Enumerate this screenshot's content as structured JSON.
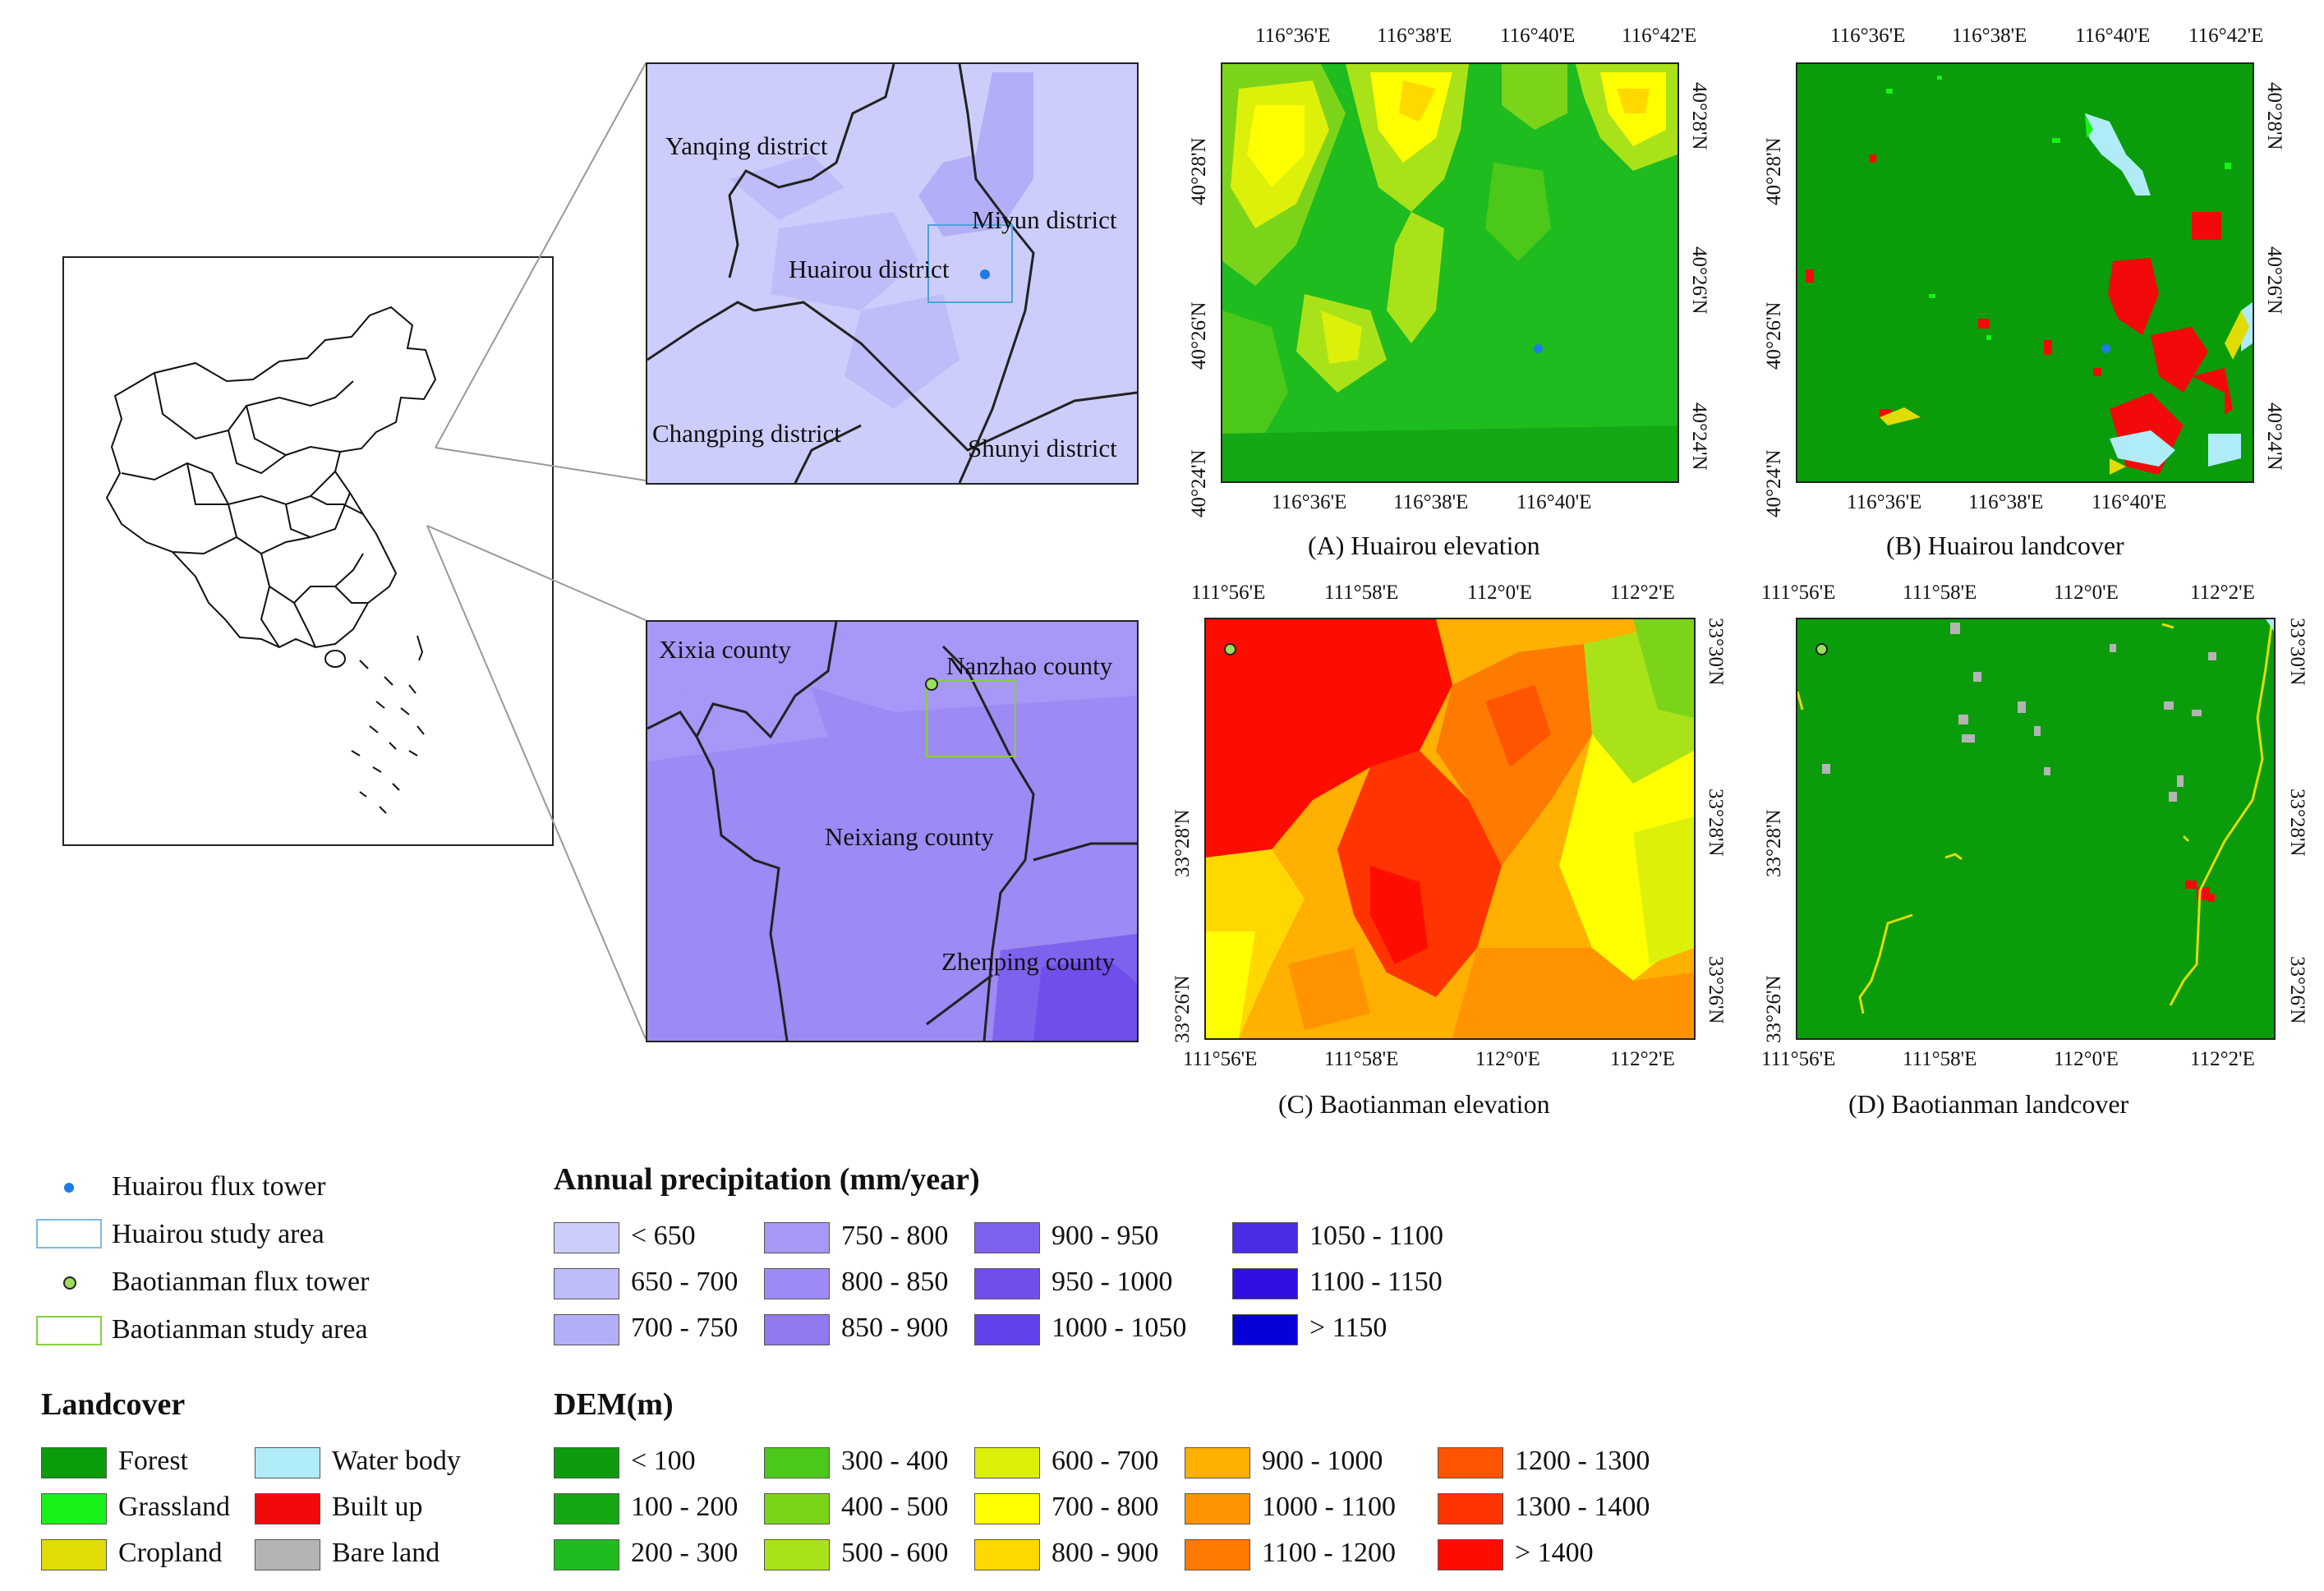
{
  "overview": {
    "name": "China overview map"
  },
  "inset_top": {
    "labels": [
      "Yanqing district",
      "Huairou district",
      "Miyun district",
      "Changping district",
      "Shunyi district"
    ]
  },
  "inset_bottom": {
    "labels": [
      "Xixia county",
      "Nanzhao county",
      "Neixiang county",
      "Zhenping county"
    ]
  },
  "panel_a": {
    "caption": "(A) Huairou elevation",
    "top_ticks": [
      "116°36'E",
      "116°38'E",
      "116°40'E",
      "116°42'E"
    ],
    "bottom_ticks": [
      "116°36'E",
      "116°38'E",
      "116°40'E"
    ],
    "left_ticks": [
      "40°28'N",
      "40°26'N",
      "40°24'N"
    ],
    "right_ticks": [
      "40°28'N",
      "40°26'N",
      "40°24'N"
    ]
  },
  "panel_b": {
    "caption": "(B) Huairou landcover",
    "top_ticks": [
      "116°36'E",
      "116°38'E",
      "116°40'E",
      "116°42'E"
    ],
    "bottom_ticks": [
      "116°36'E",
      "116°38'E",
      "116°40'E"
    ],
    "left_ticks": [
      "40°28'N",
      "40°26'N",
      "40°24'N"
    ],
    "right_ticks": [
      "40°28'N",
      "40°26'N",
      "40°24'N"
    ]
  },
  "panel_c": {
    "caption": "(C) Baotianman elevation",
    "top_ticks": [
      "111°56'E",
      "111°58'E",
      "112°0'E",
      "112°2'E"
    ],
    "bottom_ticks": [
      "111°56'E",
      "111°58'E",
      "112°0'E",
      "112°2'E"
    ],
    "left_ticks": [
      "33°28'N",
      "33°26'N"
    ],
    "right_ticks": [
      "33°30'N",
      "33°28'N",
      "33°26'N"
    ]
  },
  "panel_d": {
    "caption": "(D) Baotianman landcover",
    "top_ticks": [
      "111°56'E",
      "111°58'E",
      "112°0'E",
      "112°2'E"
    ],
    "bottom_ticks": [
      "111°56'E",
      "111°58'E",
      "112°0'E",
      "112°2'E"
    ],
    "left_ticks": [
      "33°28'N",
      "33°26'N"
    ],
    "right_ticks": [
      "33°30'N",
      "33°28'N",
      "33°26'N"
    ]
  },
  "legend_points": {
    "items": [
      "Huairou flux tower",
      "Huairou study area",
      "Baotianman flux tower",
      "Baotianman study area"
    ]
  },
  "precip": {
    "title": "Annual precipitation (mm/year)",
    "classes": [
      {
        "label": "< 650",
        "color": "#cdcdfb"
      },
      {
        "label": "650 - 700",
        "color": "#bfbcfa"
      },
      {
        "label": "700 - 750",
        "color": "#b3aef8"
      },
      {
        "label": "750 - 800",
        "color": "#a797f6"
      },
      {
        "label": "800 - 850",
        "color": "#9d8af4"
      },
      {
        "label": "850 - 900",
        "color": "#9279f2"
      },
      {
        "label": "900 - 950",
        "color": "#7e62ee"
      },
      {
        "label": "950 - 1000",
        "color": "#6f4eec"
      },
      {
        "label": "1000 - 1050",
        "color": "#6142ea"
      },
      {
        "label": "1050 - 1100",
        "color": "#4a2ee6"
      },
      {
        "label": "1100 - 1150",
        "color": "#3010e0"
      },
      {
        "label": "> 1150",
        "color": "#0800d8"
      }
    ]
  },
  "landcover": {
    "title": "Landcover",
    "classes": [
      {
        "label": "Forest",
        "color": "#0a9c0a"
      },
      {
        "label": "Grassland",
        "color": "#19f219"
      },
      {
        "label": "Cropland",
        "color": "#e0dc06"
      },
      {
        "label": "Water body",
        "color": "#b0ecf8"
      },
      {
        "label": "Built up",
        "color": "#f20a0a"
      },
      {
        "label": "Bare land",
        "color": "#b4b4b4"
      }
    ]
  },
  "dem": {
    "title": "DEM(m)",
    "classes": [
      {
        "label": "< 100",
        "color": "#0e9c0e"
      },
      {
        "label": "100 - 200",
        "color": "#14a814"
      },
      {
        "label": "200 - 300",
        "color": "#1ebc1e"
      },
      {
        "label": "300 - 400",
        "color": "#4cc81a"
      },
      {
        "label": "400 - 500",
        "color": "#7cd41a"
      },
      {
        "label": "500 - 600",
        "color": "#aae21a"
      },
      {
        "label": "600 - 700",
        "color": "#dcf00a"
      },
      {
        "label": "700 - 800",
        "color": "#ffff00"
      },
      {
        "label": "800 - 900",
        "color": "#ffd800"
      },
      {
        "label": "900 - 1000",
        "color": "#ffb000"
      },
      {
        "label": "1000 - 1100",
        "color": "#ff9400"
      },
      {
        "label": "1100 - 1200",
        "color": "#ff7a00"
      },
      {
        "label": "1200 - 1300",
        "color": "#ff5400"
      },
      {
        "label": "1300 - 1400",
        "color": "#ff3400"
      },
      {
        "label": "> 1400",
        "color": "#ff0c00"
      }
    ]
  }
}
